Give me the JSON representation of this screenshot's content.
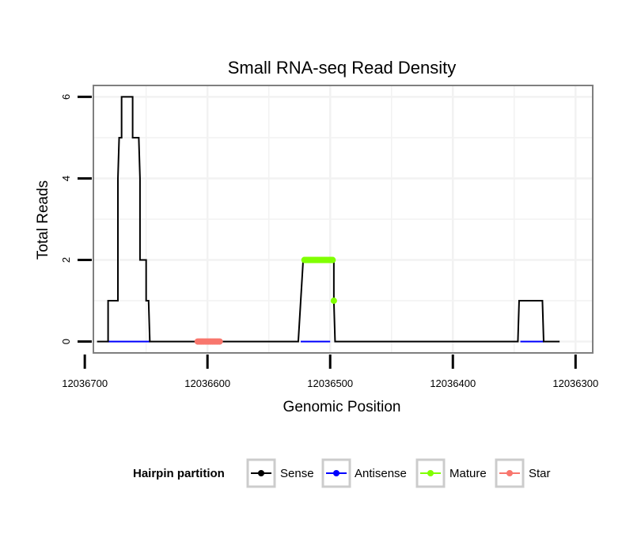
{
  "chart_data": {
    "type": "line",
    "title": "Small RNA-seq Read Density",
    "xlabel": "Genomic Position",
    "ylabel": "Total Reads",
    "xlim": [
      12036693,
      12036286
    ],
    "ylim": [
      -0.28,
      6.28
    ],
    "x_reversed": true,
    "grid": true,
    "legend_position": "bottom",
    "x_ticks": [
      12036700,
      12036600,
      12036500,
      12036400,
      12036300
    ],
    "x_tick_labels": [
      "12036700",
      "12036600",
      "12036500",
      "12036400",
      "12036300"
    ],
    "y_ticks": [
      0,
      2,
      4,
      6
    ],
    "y_tick_labels": [
      "0",
      "2",
      "4",
      "6"
    ],
    "x_minor_gridlines": [
      12036650,
      12036550,
      12036450,
      12036350
    ],
    "y_minor_gridlines": [
      1,
      3,
      5
    ],
    "series": [
      {
        "name": "Sense",
        "color": "#000000",
        "style": "line",
        "x": [
          12036690,
          12036681,
          12036681,
          12036673,
          12036673,
          12036672,
          12036670,
          12036670,
          12036661,
          12036661,
          12036656,
          12036655,
          12036655,
          12036650,
          12036650,
          12036648,
          12036647,
          12036647,
          12036526,
          12036524,
          12036524,
          12036522,
          12036521,
          12036497,
          12036497,
          12036496,
          12036495,
          12036477,
          12036347,
          12036346,
          12036345,
          12036327,
          12036326,
          12036325,
          12036313
        ],
        "y": [
          0,
          0,
          1,
          1,
          4,
          5,
          5,
          6,
          6,
          5,
          5,
          4,
          2,
          2,
          1,
          1,
          0,
          0,
          0,
          1,
          1,
          2,
          2,
          2,
          1,
          0,
          0,
          0,
          0,
          1,
          1,
          1,
          0,
          0,
          0
        ]
      },
      {
        "name": "Antisense",
        "color": "#0000ff",
        "style": "segments",
        "segments": [
          [
            12036681,
            12036647
          ],
          [
            12036524,
            12036500
          ],
          [
            12036345,
            12036326
          ]
        ],
        "y": 0
      },
      {
        "name": "Mature",
        "color": "#80ff00",
        "style": "points",
        "x": [
          12036521,
          12036520,
          12036519,
          12036518,
          12036517,
          12036516,
          12036515,
          12036514,
          12036513,
          12036512,
          12036511,
          12036510,
          12036509,
          12036508,
          12036507,
          12036506,
          12036505,
          12036504,
          12036503,
          12036502,
          12036501,
          12036500,
          12036499,
          12036498,
          12036497
        ],
        "y": [
          2,
          2,
          2,
          2,
          2,
          2,
          2,
          2,
          2,
          2,
          2,
          2,
          2,
          2,
          2,
          2,
          2,
          2,
          2,
          2,
          2,
          2,
          2,
          2,
          1
        ]
      },
      {
        "name": "Star",
        "color": "#f8766d",
        "style": "points",
        "x": [
          12036608,
          12036607,
          12036606,
          12036605,
          12036604,
          12036603,
          12036602,
          12036601,
          12036600,
          12036599,
          12036598,
          12036597,
          12036596,
          12036595,
          12036594,
          12036593,
          12036592,
          12036591,
          12036590
        ],
        "y": [
          0,
          0,
          0,
          0,
          0,
          0,
          0,
          0,
          0,
          0,
          0,
          0,
          0,
          0,
          0,
          0,
          0,
          0,
          0
        ]
      }
    ],
    "legend": {
      "title": "Hairpin partition",
      "items": [
        {
          "label": "Sense",
          "color": "#000000"
        },
        {
          "label": "Antisense",
          "color": "#0000ff"
        },
        {
          "label": "Mature",
          "color": "#80ff00"
        },
        {
          "label": "Star",
          "color": "#f8766d"
        }
      ]
    }
  }
}
